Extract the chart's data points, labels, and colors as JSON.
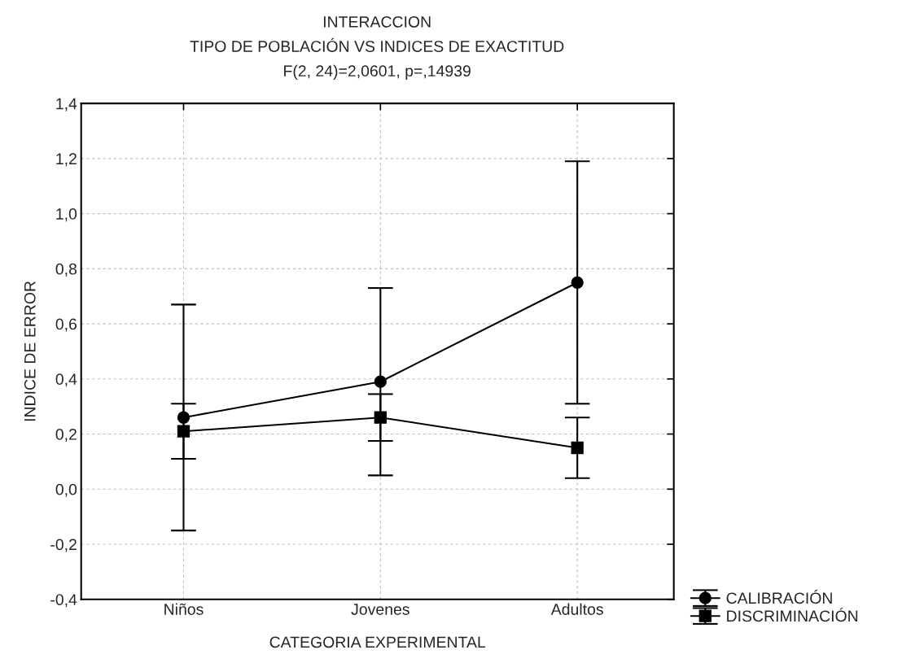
{
  "chart_data": {
    "type": "line",
    "title": "INTERACCION",
    "subtitle": "TIPO DE POBLACIÓN VS INDICES DE EXACTITUD",
    "annotations": [
      "F(2, 24)=2,0601, p=,14939"
    ],
    "xlabel": "CATEGORIA EXPERIMENTAL",
    "ylabel": "INDICE DE ERROR",
    "categories": [
      "Niños",
      "Jovenes",
      "Adultos"
    ],
    "series": [
      {
        "name": "CALIBRACIÓN",
        "color": "#000000",
        "marker": "circle",
        "values": [
          0.26,
          0.39,
          0.75
        ],
        "errors": [
          0.41,
          0.34,
          0.44
        ]
      },
      {
        "name": "DISCRIMINACIÓN",
        "color": "#000000",
        "marker": "square",
        "values": [
          0.21,
          0.26,
          0.15
        ],
        "errors": [
          0.1,
          0.085,
          0.11
        ]
      }
    ],
    "ylim": [
      -0.4,
      1.4
    ],
    "yticks": [
      {
        "value": -0.4,
        "label": "-0,4"
      },
      {
        "value": -0.2,
        "label": "-0,2"
      },
      {
        "value": 0.0,
        "label": "0,0"
      },
      {
        "value": 0.2,
        "label": "0,2"
      },
      {
        "value": 0.4,
        "label": "0,4"
      },
      {
        "value": 0.6,
        "label": "0,6"
      },
      {
        "value": 0.8,
        "label": "0,8"
      },
      {
        "value": 1.0,
        "label": "1,0"
      },
      {
        "value": 1.2,
        "label": "1,2"
      },
      {
        "value": 1.4,
        "label": "1,4"
      }
    ],
    "grid": true,
    "legend": "bottom right",
    "line_style": "solid"
  }
}
